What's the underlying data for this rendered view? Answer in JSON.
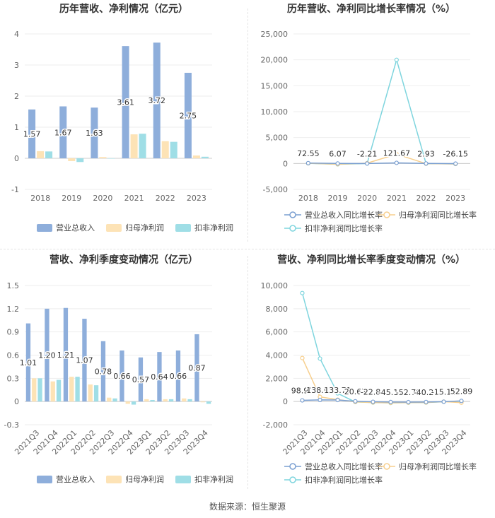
{
  "source": "数据来源：恒生聚源",
  "colors": {
    "revenue": "#8eaedb",
    "parent": "#fde3b6",
    "deduct": "#9fdee6",
    "grid": "#eeeeee",
    "axis": "#888888"
  },
  "chart_data": [
    {
      "type": "bar",
      "title": "历年营收、净利情况（亿元）",
      "categories": [
        "2018",
        "2019",
        "2020",
        "2021",
        "2022",
        "2023"
      ],
      "ylim": [
        -1,
        4
      ],
      "yticks": [
        "-1",
        "0",
        "1",
        "2",
        "3",
        "4"
      ],
      "grid": true,
      "legend_position": "bottom",
      "series": [
        {
          "name": "营业总收入",
          "values": [
            1.57,
            1.67,
            1.63,
            3.61,
            3.72,
            2.75
          ],
          "labels": [
            "1.57",
            "1.67",
            "1.63",
            "3.61",
            "3.72",
            "2.75"
          ]
        },
        {
          "name": "归母净利润",
          "values": [
            0.23,
            -0.09,
            0.04,
            0.77,
            0.55,
            0.09
          ]
        },
        {
          "name": "扣非净利润",
          "values": [
            0.22,
            -0.12,
            0.0,
            0.79,
            0.53,
            0.05
          ]
        }
      ]
    },
    {
      "type": "line",
      "title": "历年营收、净利同比增长率情况（%）",
      "categories": [
        "2018",
        "2019",
        "2020",
        "2021",
        "2022",
        "2023"
      ],
      "ylim": [
        -5000,
        25000
      ],
      "yticks": [
        "-5,000",
        "0",
        "5,000",
        "10,000",
        "15,000",
        "20,000",
        "25,000"
      ],
      "grid": true,
      "legend_position": "bottom",
      "series": [
        {
          "name": "营业总收入同比增长率",
          "values": [
            72.55,
            6.07,
            -2.21,
            121.67,
            2.93,
            -26.15
          ],
          "labels": [
            "72.55",
            "6.07",
            "-2.21",
            "121.67",
            "2.93",
            "-26.15"
          ]
        },
        {
          "name": "归母净利润同比增长率",
          "values": [
            40,
            -140,
            60,
            1800,
            -30,
            -85
          ]
        },
        {
          "name": "扣非净利润同比增长率",
          "values": [
            30,
            -160,
            0,
            20000,
            -35,
            -90
          ]
        }
      ]
    },
    {
      "type": "bar",
      "title": "营收、净利季度变动情况（亿元）",
      "categories": [
        "2021Q3",
        "2021Q4",
        "2022Q1",
        "2022Q2",
        "2022Q3",
        "2022Q4",
        "2023Q1",
        "2023Q2",
        "2023Q3",
        "2023Q4"
      ],
      "ylim": [
        -0.3,
        1.5
      ],
      "yticks": [
        "-0.3",
        "0",
        "0.3",
        "0.6",
        "0.9",
        "1.2",
        "1.5"
      ],
      "grid": true,
      "legend_position": "bottom",
      "series": [
        {
          "name": "营业总收入",
          "values": [
            1.01,
            1.2,
            1.21,
            1.07,
            0.78,
            0.66,
            0.57,
            0.64,
            0.66,
            0.87
          ],
          "labels": [
            "1.01",
            "1.20",
            "1.21",
            "1.07",
            "0.78",
            "0.66",
            "0.57",
            "0.64",
            "0.66",
            "0.87"
          ]
        },
        {
          "name": "归母净利润",
          "values": [
            0.3,
            0.26,
            0.32,
            0.22,
            0.05,
            -0.03,
            0.03,
            0.03,
            0.04,
            -0.01
          ]
        },
        {
          "name": "扣非净利润",
          "values": [
            0.3,
            0.28,
            0.32,
            0.21,
            0.04,
            -0.04,
            0.02,
            0.03,
            0.03,
            -0.03
          ]
        }
      ]
    },
    {
      "type": "line",
      "title": "营收、净利同比增长率季度变动情况（%）",
      "categories": [
        "2021Q3",
        "2021Q4",
        "2022Q1",
        "2022Q2",
        "2022Q3",
        "2022Q4",
        "2023Q1",
        "2023Q2",
        "2023Q3",
        "2023Q4"
      ],
      "ylim": [
        -2000,
        10000
      ],
      "yticks": [
        "-2,000",
        "0",
        "2,000",
        "4,000",
        "6,000",
        "8,000",
        "10,000"
      ],
      "grid": true,
      "legend_position": "bottom",
      "series": [
        {
          "name": "营业总收入同比增长率",
          "values": [
            98.9,
            138.95,
            133.71,
            20.67,
            -22.84,
            -45.11,
            -52.79,
            -40.27,
            -15.12,
            52.89
          ],
          "labels": [
            "98.90",
            "138.95",
            "133.71",
            "20.67",
            "-22.84",
            "-45.11",
            "-52.79",
            "-40.27",
            "-15.12",
            "52.89"
          ]
        },
        {
          "name": "归母净利润同比增长率",
          "values": [
            3750,
            400,
            160,
            -30,
            -80,
            -110,
            -90,
            -85,
            -10,
            -100
          ]
        },
        {
          "name": "扣非净利润同比增长率",
          "values": [
            9350,
            3700,
            700,
            -40,
            -90,
            -120,
            -100,
            -90,
            -20,
            30
          ]
        }
      ]
    }
  ]
}
